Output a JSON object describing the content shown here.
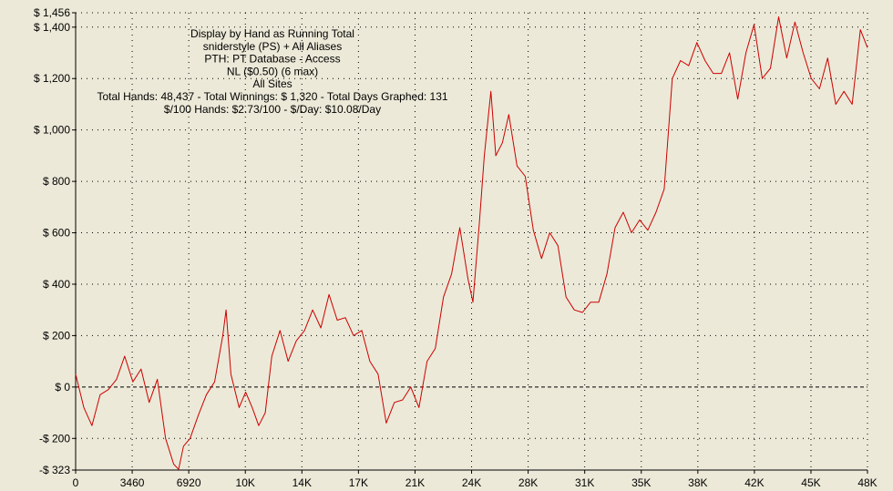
{
  "chart_data": {
    "type": "line",
    "title_lines": [
      "Display by Hand as Running Total",
      "sniderstyle (PS) + All Aliases",
      "PTH: PT Database - Access",
      "NL ($0.50) (6 max)",
      "All Sites",
      "Total Hands: 48,437 - Total Winnings: $ 1,320 - Total Days Graphed: 131",
      "$/100 Hands: $2.73/100 - $/Day: $10.08/Day"
    ],
    "xlim": [
      0,
      48437
    ],
    "ylim": [
      -323,
      1456
    ],
    "x_ticks": [
      {
        "value": 0,
        "label": "0"
      },
      {
        "value": 3460,
        "label": "3460"
      },
      {
        "value": 6920,
        "label": "6920"
      },
      {
        "value": 10380,
        "label": "10K"
      },
      {
        "value": 13840,
        "label": "14K"
      },
      {
        "value": 17300,
        "label": "17K"
      },
      {
        "value": 20760,
        "label": "21K"
      },
      {
        "value": 24220,
        "label": "24K"
      },
      {
        "value": 27680,
        "label": "28K"
      },
      {
        "value": 31140,
        "label": "31K"
      },
      {
        "value": 34600,
        "label": "35K"
      },
      {
        "value": 38060,
        "label": "38K"
      },
      {
        "value": 41520,
        "label": "42K"
      },
      {
        "value": 44980,
        "label": "45K"
      },
      {
        "value": 48437,
        "label": "48K"
      }
    ],
    "y_ticks": [
      {
        "value": 1456,
        "label": "$ 1,456"
      },
      {
        "value": 1400,
        "label": "$ 1,400"
      },
      {
        "value": 1200,
        "label": "$ 1,200"
      },
      {
        "value": 1000,
        "label": "$ 1,000"
      },
      {
        "value": 800,
        "label": "$ 800"
      },
      {
        "value": 600,
        "label": "$ 600"
      },
      {
        "value": 400,
        "label": "$ 400"
      },
      {
        "value": 200,
        "label": "$ 200"
      },
      {
        "value": 0,
        "label": "$ 0"
      },
      {
        "value": -200,
        "label": "-$ 200"
      },
      {
        "value": -323,
        "label": "-$ 323"
      }
    ],
    "grid": true,
    "zero_line": true,
    "series": [
      {
        "color": "#cc0000",
        "x": [
          0,
          500,
          1000,
          1500,
          2000,
          2500,
          3000,
          3500,
          4000,
          4500,
          5000,
          5500,
          6000,
          6300,
          6600,
          7000,
          7500,
          8000,
          8500,
          9000,
          9200,
          9500,
          10000,
          10400,
          10800,
          11200,
          11600,
          12000,
          12500,
          13000,
          13500,
          14000,
          14500,
          15000,
          15500,
          16000,
          16500,
          17000,
          17500,
          18000,
          18500,
          19000,
          19500,
          20000,
          20500,
          21000,
          21500,
          22000,
          22500,
          23000,
          23500,
          24000,
          24300,
          24700,
          25000,
          25400,
          25700,
          26100,
          26500,
          27000,
          27500,
          28000,
          28500,
          29000,
          29500,
          30000,
          30500,
          31000,
          31500,
          32000,
          32500,
          33000,
          33500,
          34000,
          34500,
          35000,
          35500,
          36000,
          36500,
          37000,
          37500,
          38000,
          38500,
          39000,
          39500,
          40000,
          40500,
          41000,
          41500,
          42000,
          42500,
          43000,
          43500,
          44000,
          44500,
          45000,
          45500,
          46000,
          46500,
          47000,
          47500,
          48000,
          48437
        ],
        "y": [
          50,
          -80,
          -150,
          -30,
          -10,
          30,
          120,
          20,
          70,
          -60,
          30,
          -200,
          -300,
          -320,
          -230,
          -200,
          -110,
          -30,
          20,
          200,
          300,
          50,
          -80,
          -20,
          -80,
          -150,
          -100,
          120,
          220,
          100,
          180,
          220,
          300,
          230,
          360,
          260,
          270,
          200,
          220,
          100,
          50,
          -140,
          -60,
          -50,
          0,
          -80,
          100,
          150,
          350,
          440,
          620,
          420,
          330,
          640,
          900,
          1150,
          900,
          950,
          1060,
          860,
          820,
          610,
          500,
          600,
          550,
          350,
          300,
          290,
          330,
          330,
          440,
          620,
          680,
          600,
          650,
          610,
          680,
          770,
          1200,
          1270,
          1250,
          1340,
          1270,
          1220,
          1220,
          1300,
          1120,
          1300,
          1410,
          1200,
          1240,
          1440,
          1280,
          1420,
          1300,
          1200,
          1160,
          1280,
          1100,
          1150,
          1100,
          1390,
          1320
        ]
      }
    ]
  }
}
